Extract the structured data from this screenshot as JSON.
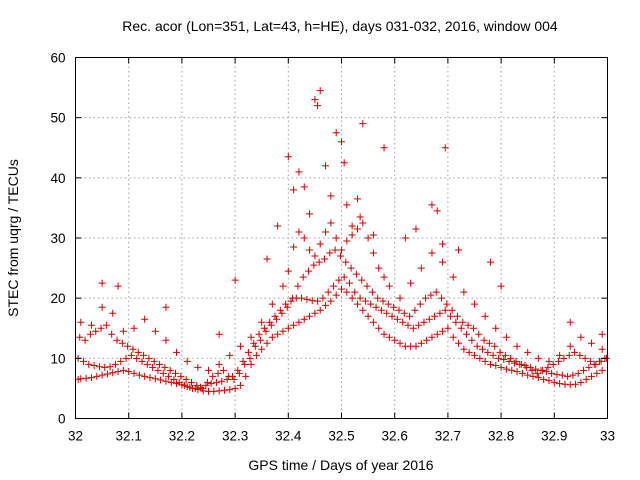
{
  "chart_data": {
    "type": "scatter",
    "title": "Rec. acor (Lon=351, Lat=43, h=HE), days 031-032, 2016, window 004",
    "xlabel": "GPS time / Days of year 2016",
    "ylabel": "STEC from uqrg / TECUs",
    "xlim": [
      32.0,
      33.0
    ],
    "ylim": [
      0,
      60
    ],
    "xticks": [
      "32",
      "32.1",
      "32.2",
      "32.3",
      "32.4",
      "32.5",
      "32.6",
      "32.7",
      "32.8",
      "32.9",
      "33"
    ],
    "yticks": [
      "0",
      "10",
      "20",
      "30",
      "40",
      "50",
      "60"
    ],
    "grid": true,
    "marker": "plus",
    "marker_color": "#cc0000",
    "series": [
      {
        "x": [
          32.005,
          32.01,
          32.02,
          32.03,
          32.04,
          32.05,
          32.06,
          32.07,
          32.08,
          32.09,
          32.1,
          32.11,
          32.12,
          32.13,
          32.14,
          32.15,
          32.16,
          32.17,
          32.18,
          32.19,
          32.2,
          32.21,
          32.22,
          32.23,
          32.24,
          32.25,
          32.26,
          32.27,
          32.28,
          32.29,
          32.3,
          32.31,
          32.32,
          32.33,
          32.34,
          32.35,
          32.36,
          32.37,
          32.38,
          32.39,
          32.4,
          32.41,
          32.42,
          32.43,
          32.44,
          32.45,
          32.46,
          32.47,
          32.48,
          32.49,
          32.5,
          32.51,
          32.52,
          32.53,
          32.54,
          32.55,
          32.56,
          32.57,
          32.58,
          32.59,
          32.6,
          32.61,
          32.62,
          32.63,
          32.64,
          32.65,
          32.66,
          32.67,
          32.68,
          32.69,
          32.7,
          32.71,
          32.72,
          32.73,
          32.74,
          32.75,
          32.76,
          32.77,
          32.78,
          32.79,
          32.8,
          32.81,
          32.82,
          32.83,
          32.84,
          32.85,
          32.86,
          32.87,
          32.88,
          32.89,
          32.9,
          32.91,
          32.92,
          32.93,
          32.94,
          32.95,
          32.96,
          32.97,
          32.98,
          32.99
        ],
        "y": [
          6.5,
          6.6,
          6.7,
          6.8,
          7.0,
          7.2,
          7.4,
          7.6,
          7.8,
          8.0,
          7.8,
          7.5,
          7.2,
          7.0,
          6.8,
          6.6,
          6.4,
          6.2,
          6.0,
          5.8,
          5.6,
          5.3,
          5.0,
          4.8,
          4.6,
          4.5,
          4.5,
          4.6,
          4.7,
          4.8,
          5.0,
          5.5,
          7.0,
          9.0,
          10.5,
          11.5,
          12.5,
          13.5,
          14.0,
          14.5,
          15.0,
          15.5,
          16.0,
          16.5,
          17.0,
          17.5,
          18.0,
          18.8,
          19.5,
          20.5,
          21.5,
          21.0,
          20.0,
          19.0,
          18.0,
          17.0,
          16.0,
          15.0,
          14.0,
          13.5,
          13.0,
          12.5,
          12.0,
          12.0,
          12.0,
          12.5,
          13.0,
          13.5,
          14.0,
          14.5,
          15.0,
          13.5,
          12.5,
          11.5,
          11.0,
          10.5,
          10.0,
          9.5,
          9.0,
          8.8,
          8.5,
          8.2,
          8.0,
          7.8,
          7.5,
          7.2,
          7.0,
          6.8,
          6.5,
          6.3,
          6.0,
          5.8,
          5.7,
          5.6,
          5.7,
          6.0,
          6.5,
          7.0,
          7.5,
          8.0
        ]
      },
      {
        "x": [
          32.005,
          32.015,
          32.025,
          32.035,
          32.045,
          32.055,
          32.065,
          32.075,
          32.085,
          32.095,
          32.105,
          32.115,
          32.125,
          32.135,
          32.145,
          32.155,
          32.165,
          32.175,
          32.185,
          32.195,
          32.205,
          32.215,
          32.225,
          32.235,
          32.245,
          32.255,
          32.265,
          32.275,
          32.285,
          32.295,
          32.305,
          32.315,
          32.325,
          32.335,
          32.345,
          32.355,
          32.365,
          32.375,
          32.385,
          32.395,
          32.405,
          32.415,
          32.425,
          32.435,
          32.445,
          32.455,
          32.465,
          32.475,
          32.485,
          32.495,
          32.505,
          32.515,
          32.525,
          32.535,
          32.545,
          32.555,
          32.565,
          32.575,
          32.585,
          32.595,
          32.605,
          32.615,
          32.625,
          32.635,
          32.645,
          32.655,
          32.665,
          32.675,
          32.685,
          32.695,
          32.705,
          32.715,
          32.725,
          32.735,
          32.745,
          32.755,
          32.765,
          32.775,
          32.785,
          32.795,
          32.805,
          32.815,
          32.825,
          32.835,
          32.845,
          32.855,
          32.865,
          32.875,
          32.885,
          32.895,
          32.905,
          32.915,
          32.925,
          32.935,
          32.945,
          32.955,
          32.965,
          32.975,
          32.985,
          32.995
        ],
        "y": [
          10.0,
          9.5,
          9.0,
          8.8,
          8.6,
          8.5,
          8.6,
          9.0,
          9.5,
          10.0,
          10.5,
          10.0,
          9.5,
          9.0,
          8.5,
          8.0,
          7.5,
          7.0,
          6.5,
          6.0,
          5.5,
          5.2,
          5.0,
          5.2,
          5.5,
          5.8,
          6.0,
          6.2,
          6.5,
          7.0,
          8.0,
          9.5,
          11.0,
          12.5,
          14.0,
          15.0,
          16.0,
          17.0,
          18.0,
          19.0,
          19.5,
          20.0,
          20.0,
          19.8,
          19.6,
          19.5,
          20.0,
          21.0,
          22.0,
          23.0,
          23.5,
          22.5,
          21.0,
          20.0,
          19.5,
          19.0,
          18.5,
          18.0,
          17.5,
          17.0,
          16.5,
          16.0,
          15.5,
          15.0,
          15.5,
          16.0,
          16.5,
          17.0,
          17.5,
          18.0,
          17.0,
          16.0,
          15.0,
          14.0,
          13.0,
          12.0,
          11.5,
          11.0,
          10.5,
          10.0,
          9.8,
          9.5,
          9.2,
          9.0,
          8.8,
          8.5,
          8.2,
          8.0,
          7.8,
          7.5,
          7.3,
          7.2,
          7.0,
          7.2,
          7.5,
          8.0,
          8.5,
          9.0,
          9.5,
          10.0
        ]
      },
      {
        "x": [
          32.008,
          32.018,
          32.028,
          32.038,
          32.048,
          32.058,
          32.068,
          32.078,
          32.088,
          32.098,
          32.108,
          32.118,
          32.128,
          32.138,
          32.148,
          32.158,
          32.168,
          32.178,
          32.188,
          32.198,
          32.208,
          32.218,
          32.228,
          32.238,
          32.248,
          32.258,
          32.268,
          32.278,
          32.288,
          32.298,
          32.308,
          32.318,
          32.328,
          32.338,
          32.348,
          32.358,
          32.368,
          32.378,
          32.388,
          32.398,
          32.408,
          32.418,
          32.428,
          32.438,
          32.448,
          32.458,
          32.468,
          32.478,
          32.488,
          32.498,
          32.508,
          32.518,
          32.528,
          32.538,
          32.548,
          32.558,
          32.568,
          32.578,
          32.588,
          32.598,
          32.608,
          32.618,
          32.628,
          32.638,
          32.648,
          32.658,
          32.668,
          32.678,
          32.688,
          32.698,
          32.708,
          32.718,
          32.728,
          32.738,
          32.748,
          32.758,
          32.768,
          32.778,
          32.788,
          32.798,
          32.808,
          32.818,
          32.828,
          32.838,
          32.848,
          32.858,
          32.868,
          32.878,
          32.888,
          32.898,
          32.908,
          32.918,
          32.928,
          32.938,
          32.948,
          32.958,
          32.968,
          32.978,
          32.988,
          32.998
        ],
        "y": [
          13.5,
          13.0,
          14.0,
          14.5,
          15.0,
          15.5,
          14.0,
          13.0,
          12.5,
          12.0,
          11.5,
          11.0,
          10.5,
          10.0,
          9.5,
          9.0,
          8.5,
          8.0,
          7.5,
          7.0,
          6.5,
          6.0,
          5.5,
          5.0,
          6.0,
          7.0,
          7.5,
          8.0,
          7.0,
          6.5,
          7.5,
          9.0,
          10.0,
          12.0,
          13.0,
          14.5,
          15.5,
          16.5,
          17.5,
          18.5,
          20.0,
          22.0,
          23.5,
          24.5,
          25.5,
          26.0,
          26.5,
          27.5,
          28.0,
          27.0,
          26.0,
          25.0,
          24.0,
          23.0,
          22.0,
          21.0,
          20.0,
          19.5,
          19.0,
          18.5,
          18.0,
          17.5,
          17.0,
          18.0,
          19.0,
          20.0,
          20.5,
          21.0,
          20.0,
          19.0,
          18.0,
          17.0,
          16.0,
          15.5,
          15.0,
          14.0,
          13.0,
          12.5,
          12.0,
          11.0,
          10.5,
          10.0,
          9.5,
          9.0,
          8.5,
          8.0,
          7.5,
          8.0,
          8.5,
          9.0,
          9.5,
          10.0,
          10.5,
          11.0,
          10.5,
          10.0,
          9.5,
          9.0,
          9.5,
          10.0
        ]
      },
      {
        "x": [
          32.01,
          32.03,
          32.05,
          32.07,
          32.09,
          32.11,
          32.13,
          32.15,
          32.17,
          32.19,
          32.21,
          32.23,
          32.25,
          32.27,
          32.29,
          32.31,
          32.33,
          32.35,
          32.37,
          32.39,
          32.4,
          32.41,
          32.42,
          32.43,
          32.44,
          32.45,
          32.46,
          32.47,
          32.48,
          32.49,
          32.5,
          32.51,
          32.52,
          32.53,
          32.54,
          32.55,
          32.56,
          32.57,
          32.58,
          32.59,
          32.61,
          32.63,
          32.65,
          32.67,
          32.69,
          32.71,
          32.73,
          32.75,
          32.77,
          32.79,
          32.81,
          32.83,
          32.85,
          32.87,
          32.89,
          32.91,
          32.93,
          32.95,
          32.97,
          32.99
        ],
        "y": [
          16.0,
          15.5,
          18.5,
          17.5,
          14.5,
          15.0,
          16.5,
          14.5,
          13.0,
          11.0,
          9.5,
          8.5,
          8.0,
          9.0,
          10.5,
          12.0,
          13.5,
          16.0,
          19.0,
          22.0,
          24.5,
          28.5,
          31.0,
          30.0,
          28.0,
          27.0,
          29.0,
          31.0,
          32.5,
          30.0,
          28.0,
          29.5,
          30.5,
          31.5,
          32.5,
          30.0,
          27.5,
          25.0,
          23.5,
          22.0,
          20.0,
          22.5,
          25.0,
          27.5,
          26.0,
          23.5,
          21.0,
          19.0,
          17.0,
          15.0,
          13.5,
          12.0,
          11.0,
          10.0,
          9.5,
          10.5,
          12.0,
          13.5,
          12.5,
          11.5
        ]
      },
      {
        "x": [
          32.05,
          32.08,
          32.17,
          32.27,
          32.3,
          32.36,
          32.38,
          32.4,
          32.41,
          32.42,
          32.43,
          32.44,
          32.45,
          32.455,
          32.46,
          32.47,
          32.48,
          32.49,
          32.5,
          32.505,
          32.51,
          32.52,
          32.53,
          32.535,
          32.54,
          32.56,
          32.58,
          32.62,
          32.64,
          32.67,
          32.68,
          32.69,
          32.695,
          32.72,
          32.78,
          32.8,
          32.93,
          32.99
        ],
        "y": [
          22.5,
          22.0,
          18.5,
          14.0,
          23.0,
          26.5,
          32.0,
          43.5,
          38.0,
          41.0,
          38.5,
          34.0,
          53.0,
          52.0,
          54.5,
          42.0,
          37.0,
          47.5,
          46.0,
          42.5,
          35.5,
          32.0,
          36.5,
          33.5,
          49.0,
          30.5,
          45.0,
          30.0,
          31.5,
          35.5,
          34.5,
          29.0,
          45.0,
          28.0,
          26.0,
          22.0,
          16.0,
          14.0
        ]
      }
    ]
  }
}
